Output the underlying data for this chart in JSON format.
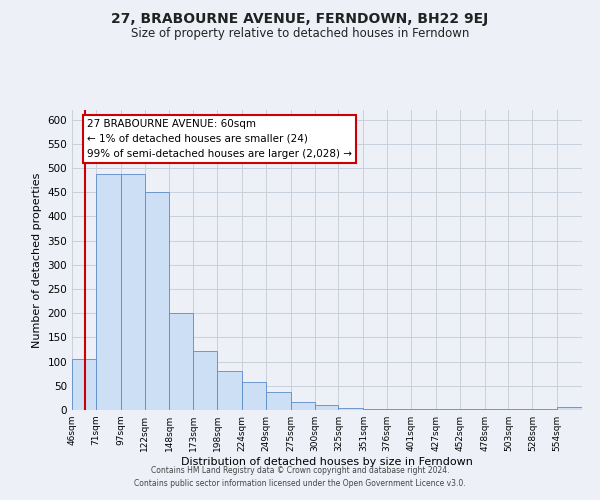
{
  "title": "27, BRABOURNE AVENUE, FERNDOWN, BH22 9EJ",
  "subtitle": "Size of property relative to detached houses in Ferndown",
  "xlabel": "Distribution of detached houses by size in Ferndown",
  "ylabel": "Number of detached properties",
  "footer_line1": "Contains HM Land Registry data © Crown copyright and database right 2024.",
  "footer_line2": "Contains public sector information licensed under the Open Government Licence v3.0.",
  "bin_edges": [
    46,
    71,
    97,
    122,
    148,
    173,
    198,
    224,
    249,
    275,
    300,
    325,
    351,
    376,
    401,
    427,
    452,
    478,
    503,
    528,
    554,
    580
  ],
  "bin_labels": [
    "46sqm",
    "71sqm",
    "97sqm",
    "122sqm",
    "148sqm",
    "173sqm",
    "198sqm",
    "224sqm",
    "249sqm",
    "275sqm",
    "300sqm",
    "325sqm",
    "351sqm",
    "376sqm",
    "401sqm",
    "427sqm",
    "452sqm",
    "478sqm",
    "503sqm",
    "528sqm",
    "554sqm"
  ],
  "heights": [
    105,
    487,
    487,
    450,
    200,
    122,
    80,
    58,
    37,
    17,
    10,
    5,
    3,
    3,
    3,
    3,
    3,
    3,
    3,
    3,
    7
  ],
  "bar_color": "#ccdff5",
  "bar_edge_color": "#5b8cc8",
  "grid_color": "#c8d0dc",
  "bg_color": "#edf1f7",
  "property_line_x": 60,
  "property_line_color": "#cc0000",
  "annotation_text_line1": "27 BRABOURNE AVENUE: 60sqm",
  "annotation_text_line2": "← 1% of detached houses are smaller (24)",
  "annotation_text_line3": "99% of semi-detached houses are larger (2,028) →",
  "annotation_box_color": "#ffffff",
  "annotation_box_edge": "#cc0000",
  "ylim": [
    0,
    620
  ],
  "yticks": [
    0,
    50,
    100,
    150,
    200,
    250,
    300,
    350,
    400,
    450,
    500,
    550,
    600
  ]
}
